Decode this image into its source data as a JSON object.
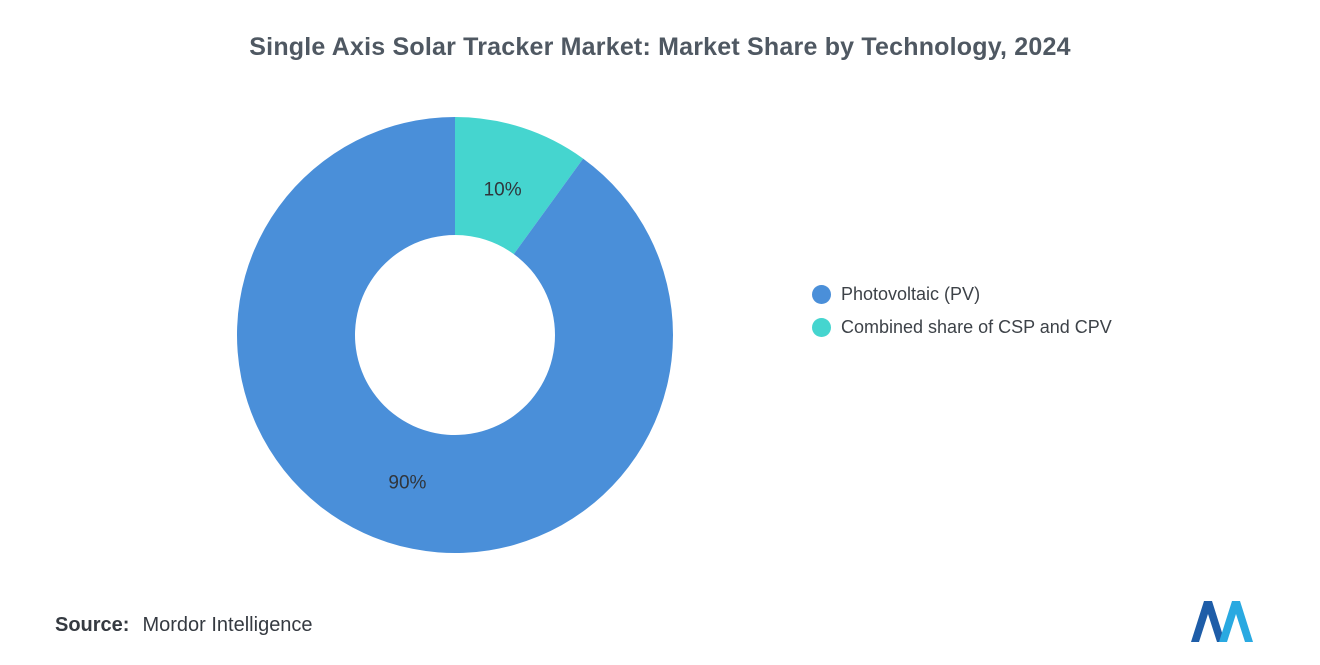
{
  "chart_data": {
    "type": "pie",
    "subtype": "donut",
    "title": "Single Axis Solar Tracker Market: Market Share by Technology, 2024",
    "start_angle_deg": -90,
    "direction": "clockwise",
    "inner_radius_ratio": 0.46,
    "slices": [
      {
        "label": "Combined share of CSP and CPV",
        "value": 10,
        "data_label": "10%",
        "color": "#45D5CF"
      },
      {
        "label": "Photovoltaic (PV)",
        "value": 90,
        "data_label": "90%",
        "color": "#4A8FD9"
      }
    ],
    "legend": [
      {
        "label": "Photovoltaic (PV)",
        "color": "#4A8FD9"
      },
      {
        "label": "Combined share of CSP and CPV",
        "color": "#45D5CF"
      }
    ],
    "legend_position": "right",
    "grid": false
  },
  "source": {
    "label": "Source:",
    "name": "Mordor Intelligence"
  },
  "colors": {
    "title": "#4F5862",
    "legend_text": "#3D4248",
    "slice_label": "#30353B",
    "logo_dark": "#1E5DA8",
    "logo_light": "#29A9E1"
  }
}
